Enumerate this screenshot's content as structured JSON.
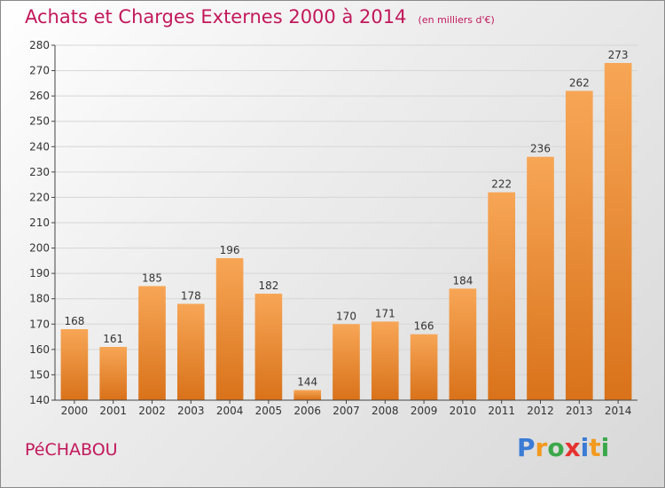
{
  "header": {
    "title": "Achats et Charges Externes 2000 à 2014",
    "subtitle": "(en milliers d'€)"
  },
  "footer": {
    "commune": "PéCHABOU",
    "brand_letters": [
      {
        "ch": "P",
        "color": "#3a7bd5"
      },
      {
        "ch": "r",
        "color": "#f29a1f"
      },
      {
        "ch": "o",
        "color": "#3aa84a"
      },
      {
        "ch": "x",
        "color": "#e6322f"
      },
      {
        "ch": "i",
        "color": "#3a7bd5"
      },
      {
        "ch": "t",
        "color": "#f29a1f"
      },
      {
        "ch": "i",
        "color": "#3aa84a"
      }
    ]
  },
  "colors": {
    "title": "#c2185b",
    "bar_top": "#f7a656",
    "bar_bottom": "#d9721a",
    "grid": "#d6d6d6",
    "axis": "#444444"
  },
  "chart_data": {
    "type": "bar",
    "categories": [
      "2000",
      "2001",
      "2002",
      "2003",
      "2004",
      "2005",
      "2006",
      "2007",
      "2008",
      "2009",
      "2010",
      "2011",
      "2012",
      "2013",
      "2014"
    ],
    "values": [
      168,
      161,
      185,
      178,
      196,
      182,
      144,
      170,
      171,
      166,
      184,
      222,
      236,
      262,
      273
    ],
    "title": "Achats et Charges Externes 2000 à 2014",
    "subtitle": "(en milliers d'€)",
    "xlabel": "",
    "ylabel": "",
    "ylim": [
      140,
      280
    ],
    "yticks": [
      140,
      150,
      160,
      170,
      180,
      190,
      200,
      210,
      220,
      230,
      240,
      250,
      260,
      270,
      280
    ],
    "grid": true,
    "legend": "none",
    "data_labels": true
  }
}
